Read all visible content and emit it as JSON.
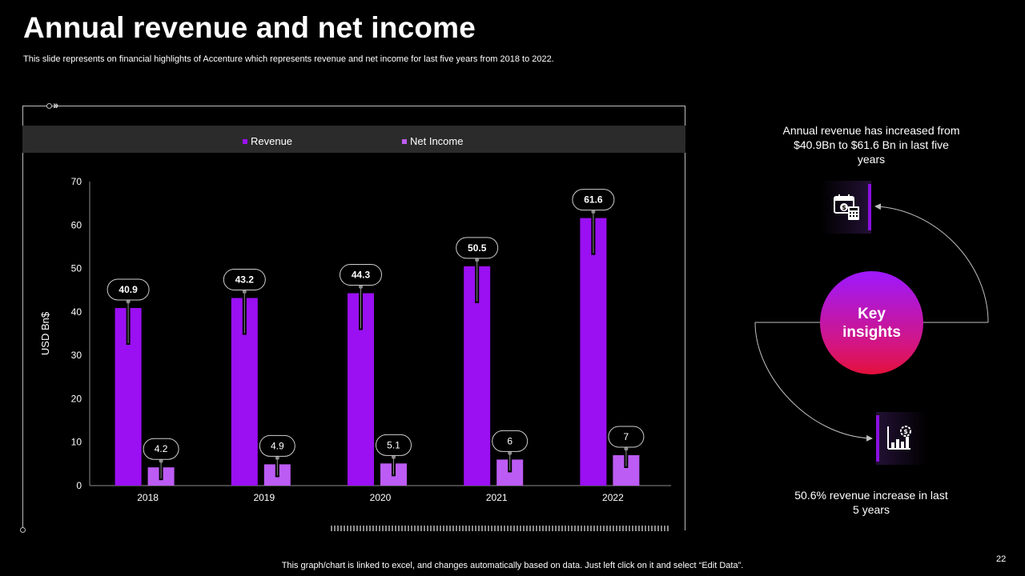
{
  "slide": {
    "title": "Annual revenue and net income",
    "subtitle": "This slide represents on financial highlights of Accenture which represents revenue and net income for last five years from 2018 to 2022.",
    "footnote": "This graph/chart is linked to excel,  and changes automatically based on data. Just left click on it and select “Edit Data”.",
    "page_number": "22"
  },
  "legend": {
    "revenue": "Revenue",
    "net_income": "Net Income"
  },
  "chart_data": {
    "type": "bar",
    "categories": [
      "2018",
      "2019",
      "2020",
      "2021",
      "2022"
    ],
    "series": [
      {
        "name": "Revenue",
        "values": [
          40.9,
          43.2,
          44.3,
          50.5,
          61.6
        ],
        "color": "#9a10f2"
      },
      {
        "name": "Net Income",
        "values": [
          4.2,
          4.9,
          5.1,
          6,
          7
        ],
        "color": "#bc5cf4"
      }
    ],
    "ylabel": "USD Bn$",
    "xlabel": "",
    "ylim": [
      0,
      70
    ],
    "yticks": [
      "0",
      "10",
      "20",
      "30",
      "40",
      "50",
      "60",
      "70"
    ],
    "data_labels": {
      "Revenue": [
        "40.9",
        "43.2",
        "44.3",
        "50.5",
        "61.6"
      ],
      "Net Income": [
        "4.2",
        "4.9",
        "5.1",
        "6",
        "7"
      ]
    },
    "grid": false,
    "legend_position": "top"
  },
  "insights": {
    "heading": "Key insights",
    "top_text": "Annual revenue has increased from $40.9Bn to $61.6 Bn in last five years",
    "bottom_text": "50.6% revenue increase in last 5 years",
    "top_icon": "calendar-dollar-calculator-icon",
    "bottom_icon": "growth-chart-dollar-gear-icon"
  }
}
